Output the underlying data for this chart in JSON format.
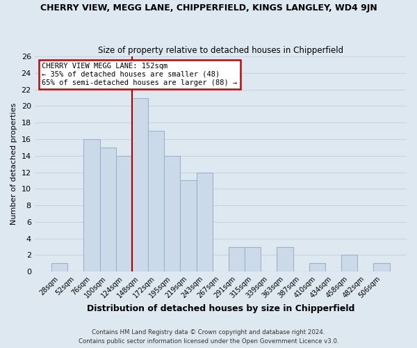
{
  "title": "CHERRY VIEW, MEGG LANE, CHIPPERFIELD, KINGS LANGLEY, WD4 9JN",
  "subtitle": "Size of property relative to detached houses in Chipperfield",
  "xlabel": "Distribution of detached houses by size in Chipperfield",
  "ylabel": "Number of detached properties",
  "footnote1": "Contains HM Land Registry data © Crown copyright and database right 2024.",
  "footnote2": "Contains public sector information licensed under the Open Government Licence v3.0.",
  "bar_labels": [
    "28sqm",
    "52sqm",
    "76sqm",
    "100sqm",
    "124sqm",
    "148sqm",
    "172sqm",
    "195sqm",
    "219sqm",
    "243sqm",
    "267sqm",
    "291sqm",
    "315sqm",
    "339sqm",
    "363sqm",
    "387sqm",
    "410sqm",
    "434sqm",
    "458sqm",
    "482sqm",
    "506sqm"
  ],
  "bar_values": [
    1,
    0,
    16,
    15,
    14,
    21,
    17,
    14,
    11,
    12,
    0,
    3,
    3,
    0,
    3,
    0,
    1,
    0,
    2,
    0,
    1
  ],
  "bar_color": "#ccd9e8",
  "bar_edge_color": "#9bb3cc",
  "ylim": [
    0,
    26
  ],
  "yticks": [
    0,
    2,
    4,
    6,
    8,
    10,
    12,
    14,
    16,
    18,
    20,
    22,
    24,
    26
  ],
  "annotation_title": "CHERRY VIEW MEGG LANE: 152sqm",
  "annotation_line1": "← 35% of detached houses are smaller (48)",
  "annotation_line2": "65% of semi-detached houses are larger (88) →",
  "ref_line_index": 5,
  "annotation_box_color": "#ffffff",
  "annotation_box_edge": "#cc0000",
  "ref_line_color": "#aa0000",
  "grid_color": "#c8d4e0",
  "background_color": "#dde8f0"
}
